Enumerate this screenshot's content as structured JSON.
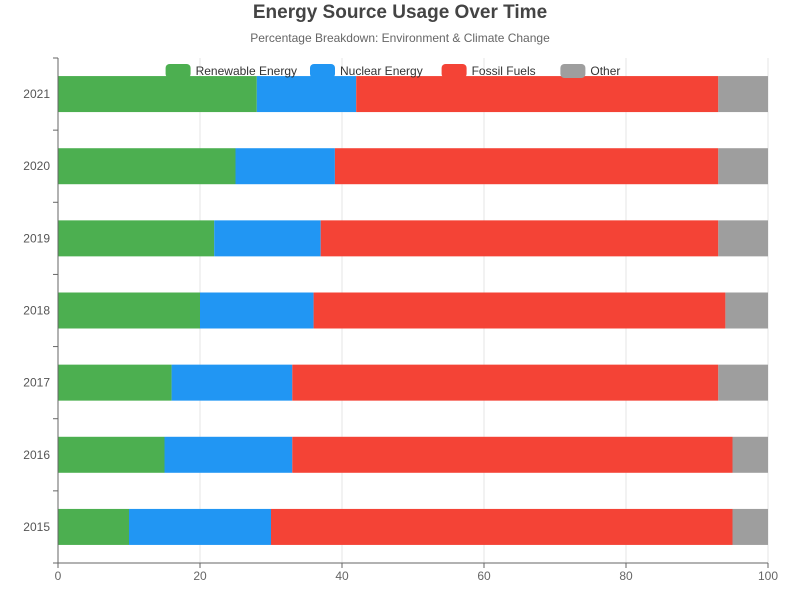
{
  "chart_data": {
    "type": "bar",
    "orientation": "horizontal",
    "stacked": true,
    "title": "Energy Source Usage Over Time",
    "subtitle": "Percentage Breakdown: Environment & Climate Change",
    "categories": [
      "2021",
      "2020",
      "2019",
      "2018",
      "2017",
      "2016",
      "2015"
    ],
    "series": [
      {
        "name": "Renewable Energy",
        "color": "#4caf50",
        "values": [
          28,
          25,
          22,
          20,
          16,
          15,
          10
        ]
      },
      {
        "name": "Nuclear Energy",
        "color": "#2196f3",
        "values": [
          14,
          14,
          15,
          16,
          17,
          18,
          20
        ]
      },
      {
        "name": "Fossil Fuels",
        "color": "#f44336",
        "values": [
          51,
          54,
          56,
          58,
          60,
          62,
          65
        ]
      },
      {
        "name": "Other",
        "color": "#9e9e9e",
        "values": [
          7,
          7,
          7,
          6,
          7,
          5,
          5
        ]
      }
    ],
    "xlim": [
      0,
      100
    ],
    "xticks": [
      "0",
      "20",
      "40",
      "60",
      "80",
      "100"
    ],
    "grid": true,
    "legend_position": "top"
  }
}
